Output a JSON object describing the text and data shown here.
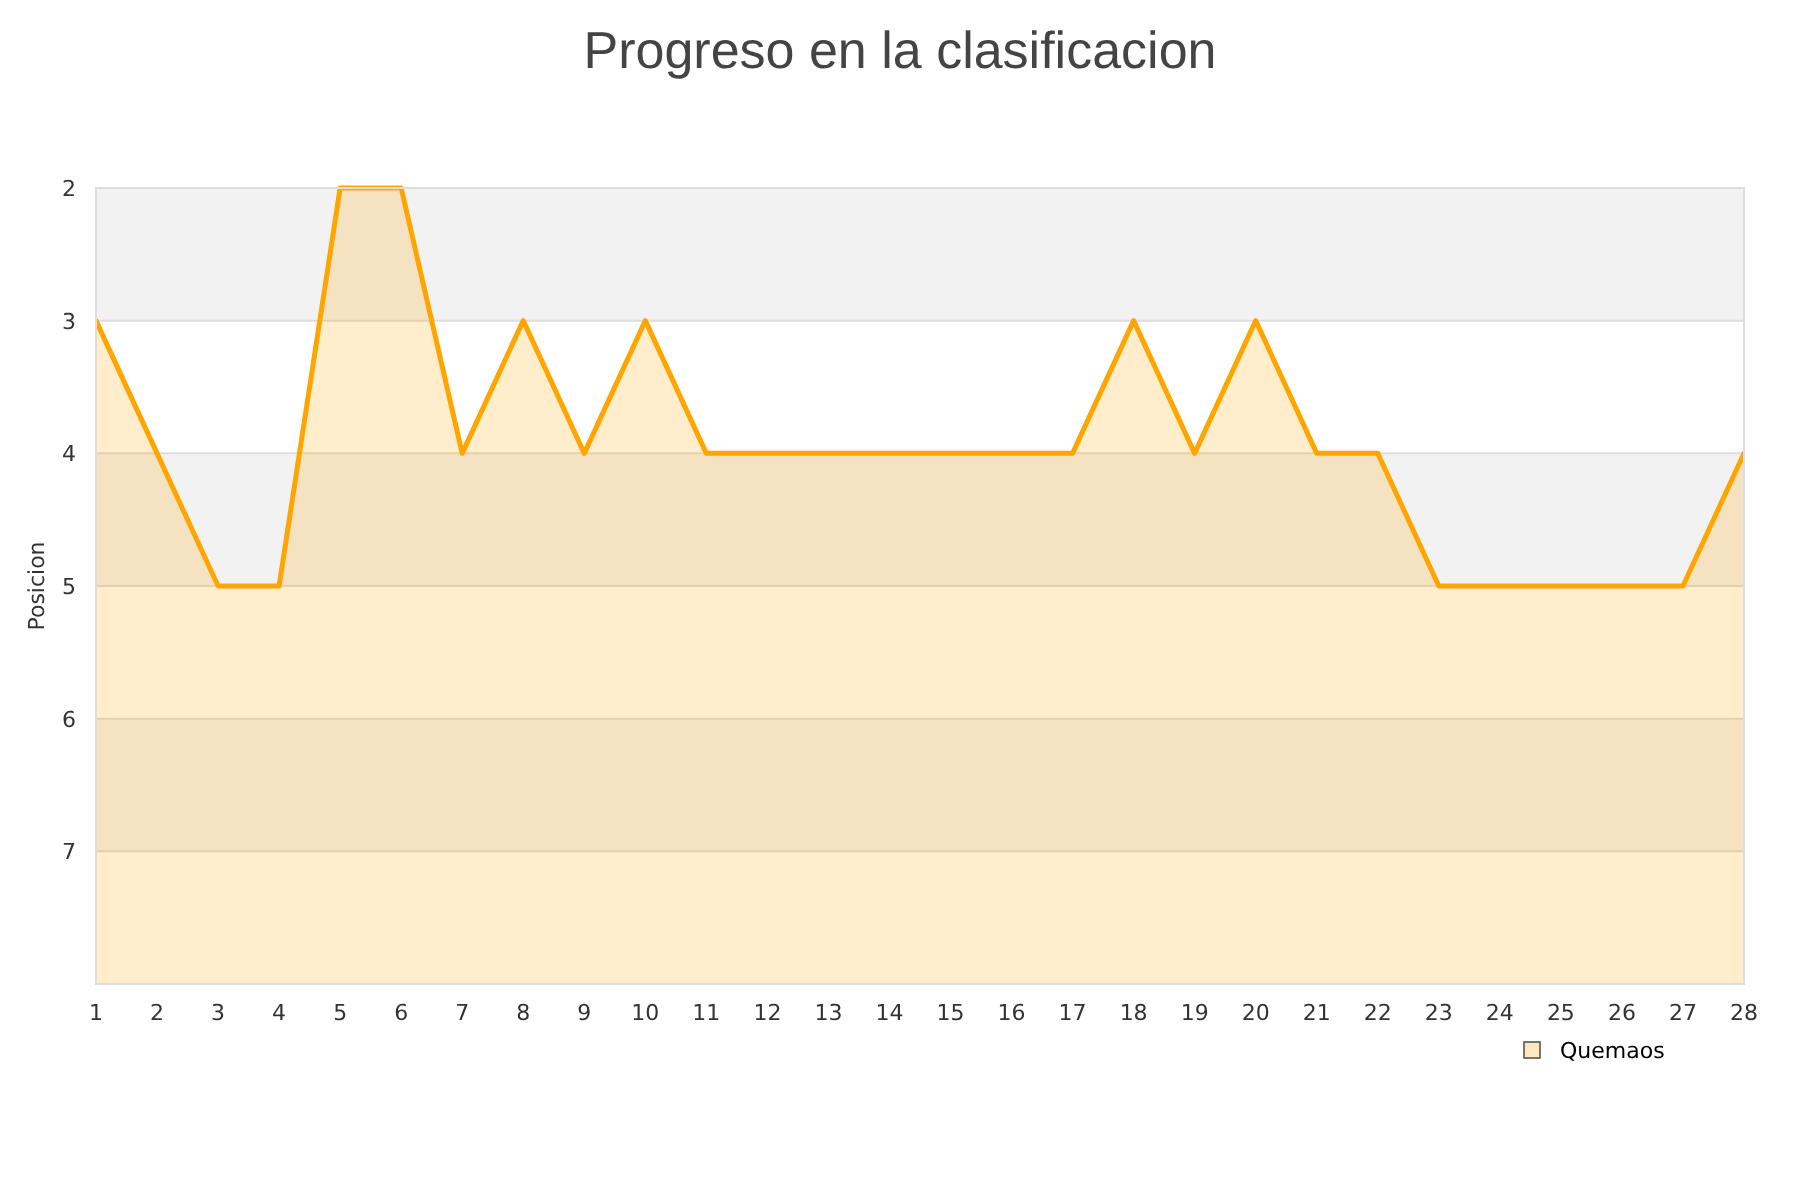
{
  "chart_data": {
    "type": "area",
    "title": "Progreso en la clasificacion",
    "ylabel": "Posicion",
    "x": [
      1,
      2,
      3,
      4,
      5,
      6,
      7,
      8,
      9,
      10,
      11,
      12,
      13,
      14,
      15,
      16,
      17,
      18,
      19,
      20,
      21,
      22,
      23,
      24,
      25,
      26,
      27,
      28
    ],
    "series": [
      {
        "name": "Quemaos",
        "color": "#ffa500",
        "values": [
          3,
          4,
          5,
          5,
          2,
          2,
          4,
          3,
          4,
          3,
          4,
          4,
          4,
          4,
          4,
          4,
          4,
          3,
          4,
          3,
          4,
          4,
          5,
          5,
          5,
          5,
          5,
          4
        ]
      }
    ],
    "xlim": [
      1,
      28
    ],
    "xticks": [
      1,
      2,
      3,
      4,
      5,
      6,
      7,
      8,
      9,
      10,
      11,
      12,
      13,
      14,
      15,
      16,
      17,
      18,
      19,
      20,
      21,
      22,
      23,
      24,
      25,
      26,
      27,
      28
    ],
    "ylim": [
      8,
      2
    ],
    "yticks": [
      2,
      3,
      4,
      5,
      6,
      7
    ],
    "bands": [
      {
        "axis": "y",
        "from": 2,
        "to": 3,
        "color": "#f2f2f2"
      },
      {
        "axis": "y",
        "from": 4,
        "to": 5,
        "color": "#f2f2f2"
      },
      {
        "axis": "y",
        "from": 6,
        "to": 7,
        "color": "#f2f2f2"
      }
    ],
    "grid": "y",
    "legend": "bottom right",
    "marker": "none",
    "line_style": "solid"
  }
}
